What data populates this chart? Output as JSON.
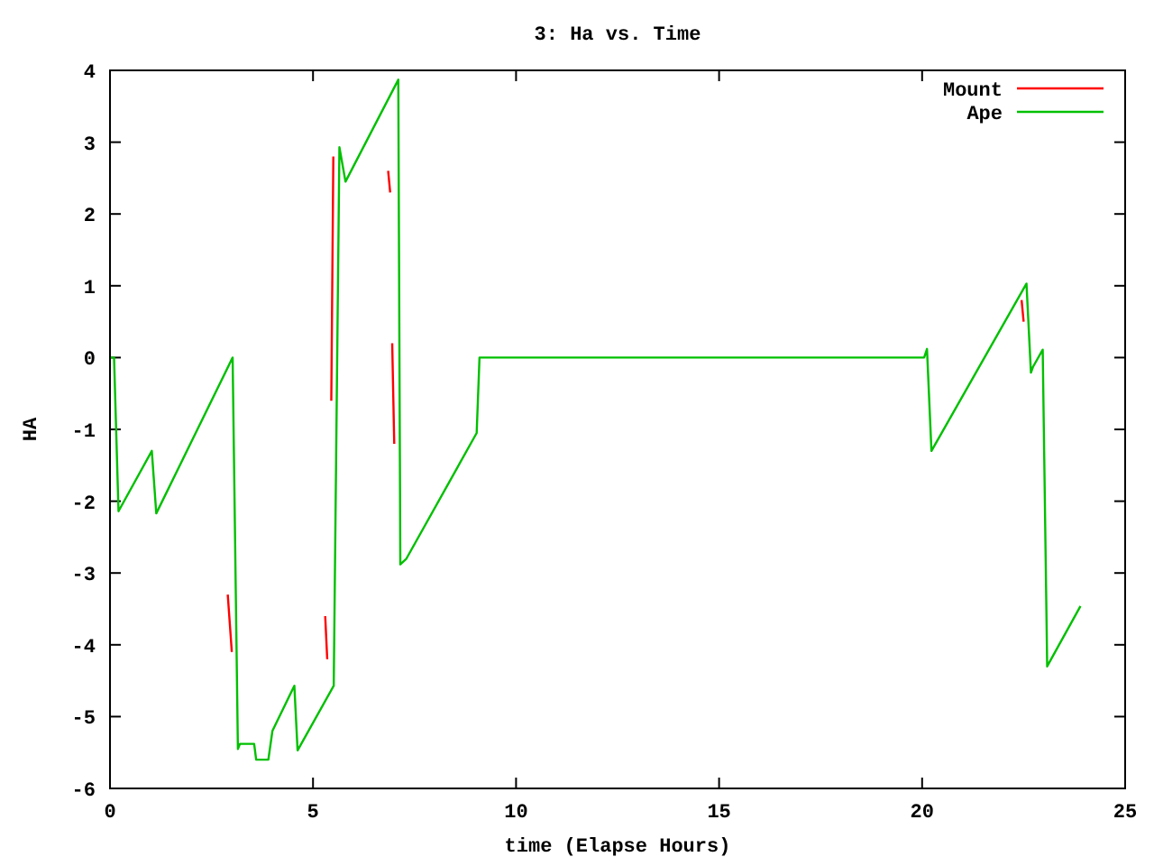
{
  "chart_data": {
    "type": "line",
    "title": "3: Ha vs. Time",
    "xlabel": "time (Elapse Hours)",
    "ylabel": "HA",
    "xlim": [
      0,
      25
    ],
    "xticks": [
      0,
      5,
      10,
      15,
      20,
      25
    ],
    "ylim": [
      -6,
      4
    ],
    "yticks": [
      -6,
      -5,
      -4,
      -3,
      -2,
      -1,
      0,
      1,
      2,
      3,
      4
    ],
    "grid": false,
    "legend": "top right",
    "marker": "none",
    "line_style": "solid",
    "series": [
      {
        "name": "Mount",
        "color": "#ff0000",
        "x": [
          2.9,
          3.0,
          3.05,
          5.3,
          5.35,
          5.4,
          5.45,
          5.5,
          5.55,
          6.85,
          6.9,
          6.92,
          6.95,
          7.0,
          7.05,
          22.45,
          22.5
        ],
        "values": [
          -3.3,
          -4.1,
          null,
          -3.6,
          -4.2,
          null,
          -0.6,
          2.8,
          null,
          2.6,
          2.3,
          null,
          0.2,
          -1.2,
          null,
          0.8,
          0.5
        ]
      },
      {
        "name": "Ape",
        "color": "#00c000",
        "x": [
          0,
          0.1,
          0.21,
          1.03,
          1.14,
          3.02,
          3.15,
          3.2,
          3.55,
          3.6,
          3.9,
          4.0,
          4.54,
          4.62,
          5.51,
          5.65,
          5.8,
          7.1,
          7.15,
          7.3,
          9.03,
          9.1,
          20.05,
          20.12,
          20.23,
          22.57,
          22.68,
          22.73,
          22.97,
          23.08,
          23.9
        ],
        "values": [
          0,
          0,
          -2.14,
          -1.3,
          -2.17,
          0,
          -5.45,
          -5.38,
          -5.38,
          -5.6,
          -5.6,
          -5.2,
          -4.57,
          -5.47,
          -4.57,
          2.93,
          2.45,
          3.87,
          -2.88,
          -2.8,
          -1.05,
          0,
          0,
          0.12,
          -1.3,
          1.03,
          -0.21,
          -0.13,
          0.11,
          -4.3,
          -3.46
        ]
      }
    ]
  }
}
